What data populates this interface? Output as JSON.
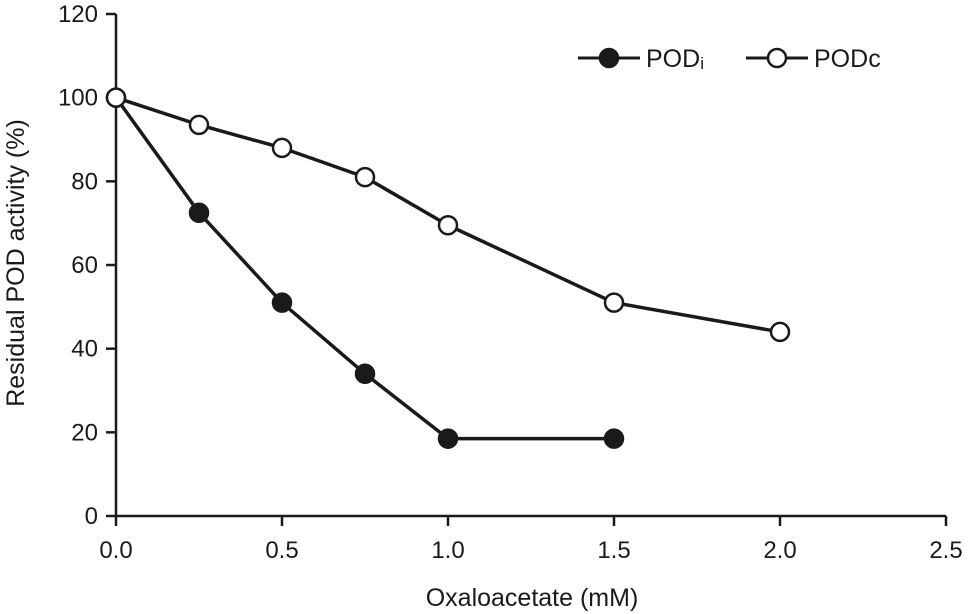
{
  "chart_data": {
    "type": "line",
    "xlabel": "Oxaloacetate (mM)",
    "ylabel": "Residual POD activity (%)",
    "xlim": [
      0,
      2.5
    ],
    "ylim": [
      0,
      120
    ],
    "x_ticks": [
      "0.0",
      "0.5",
      "1.0",
      "1.5",
      "2.0",
      "2.5"
    ],
    "y_ticks": [
      "0",
      "20",
      "40",
      "60",
      "80",
      "100",
      "120"
    ],
    "grid": false,
    "legend_position": "top-right",
    "series": [
      {
        "name": "PODi",
        "name_main": "POD",
        "name_sub": "i",
        "marker": "filled-circle",
        "color": "#1a1a1a",
        "x": [
          0,
          0.25,
          0.5,
          0.75,
          1.0,
          1.5
        ],
        "y": [
          100,
          72.5,
          51,
          34,
          18.5,
          18.5
        ]
      },
      {
        "name": "PODc",
        "name_main": "POD",
        "name_sub": "c",
        "marker": "open-circle",
        "color": "#1a1a1a",
        "x": [
          0,
          0.25,
          0.5,
          0.75,
          1.0,
          1.5,
          2.0
        ],
        "y": [
          100,
          93.5,
          88,
          81,
          69.5,
          51,
          44
        ]
      }
    ]
  }
}
